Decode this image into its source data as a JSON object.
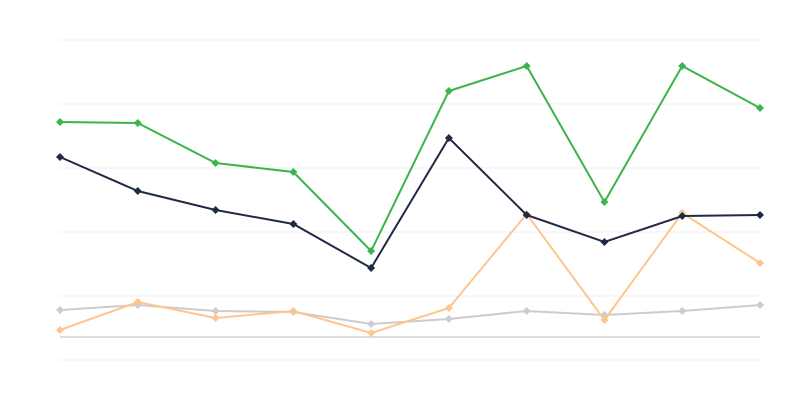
{
  "chart_data": {
    "type": "line",
    "categories": [
      null,
      null,
      null,
      null,
      null,
      null,
      null,
      null,
      null,
      null
    ],
    "series": [
      {
        "color": "#cccccc",
        "values": [
          27,
          32,
          26,
          25,
          13,
          18,
          26,
          22,
          26,
          32
        ]
      },
      {
        "color": "#fdc68e",
        "values": [
          7,
          35,
          19,
          26,
          4,
          29,
          123,
          17,
          124,
          74
        ]
      },
      {
        "color": "#1f2a44",
        "values": [
          180,
          146,
          127,
          113,
          69,
          199,
          122,
          95,
          121,
          122
        ]
      },
      {
        "color": "#3cb44b",
        "values": [
          215,
          214,
          174,
          165,
          86,
          246,
          271,
          135,
          271,
          229
        ]
      }
    ],
    "ylim": [
      -23,
      297
    ],
    "ygrid": [
      -23,
      41,
      105,
      169,
      233,
      297
    ],
    "grid": true
  }
}
